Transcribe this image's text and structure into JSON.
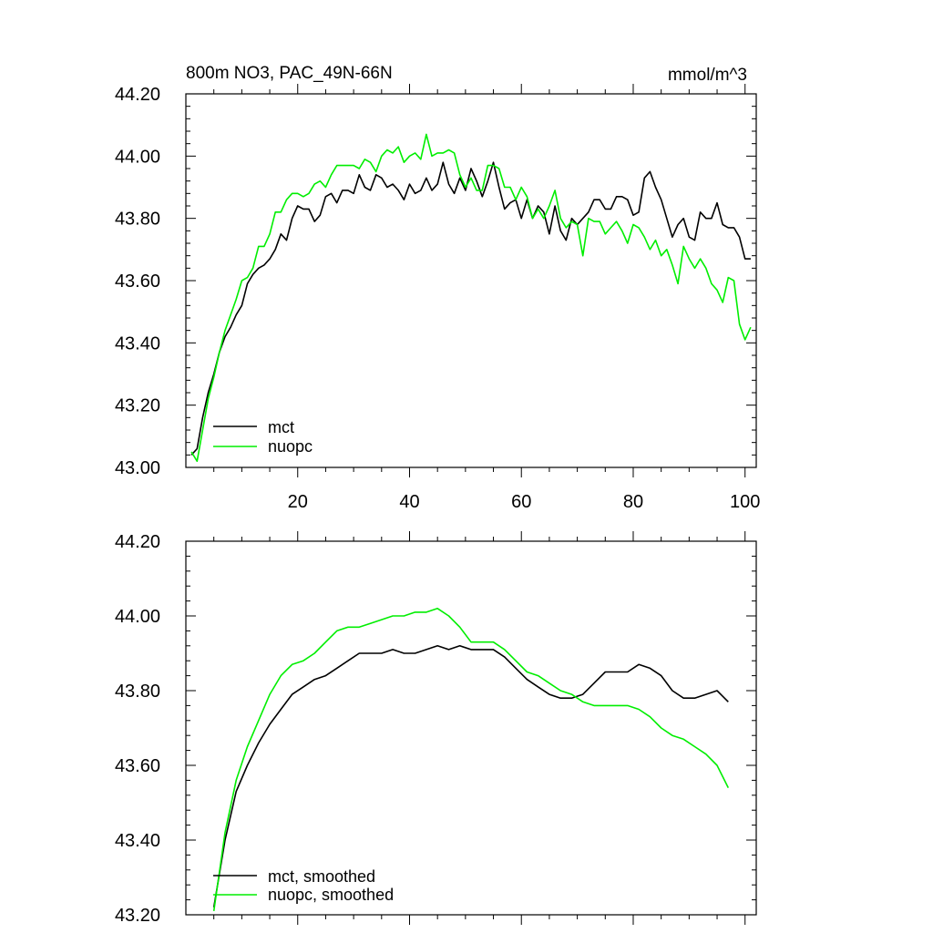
{
  "colors": {
    "mct": "#000000",
    "nuopc": "#00ee00",
    "axis": "#000000"
  },
  "chart_data": [
    {
      "type": "line",
      "title": "800m NO3, PAC_49N-66N",
      "units_label": "mmol/m^3",
      "xlim": [
        0,
        102
      ],
      "ylim": [
        43.0,
        44.2
      ],
      "xticks": [
        20,
        40,
        60,
        80,
        100
      ],
      "xtick_labels": [
        "20",
        "40",
        "60",
        "80",
        "100"
      ],
      "yticks": [
        43.0,
        43.2,
        43.4,
        43.6,
        43.8,
        44.0,
        44.2
      ],
      "ytick_labels": [
        "43.00",
        "43.20",
        "43.40",
        "43.60",
        "43.80",
        "44.00",
        "44.20"
      ],
      "legend": {
        "position": "bottom-left",
        "entries": [
          "mct",
          "nuopc"
        ]
      },
      "series": [
        {
          "name": "mct",
          "x": [
            1,
            2,
            3,
            4,
            5,
            6,
            7,
            8,
            9,
            10,
            11,
            12,
            13,
            14,
            15,
            16,
            17,
            18,
            19,
            20,
            21,
            22,
            23,
            24,
            25,
            26,
            27,
            28,
            29,
            30,
            31,
            32,
            33,
            34,
            35,
            36,
            37,
            38,
            39,
            40,
            41,
            42,
            43,
            44,
            45,
            46,
            47,
            48,
            49,
            50,
            51,
            52,
            53,
            54,
            55,
            56,
            57,
            58,
            59,
            60,
            61,
            62,
            63,
            64,
            65,
            66,
            67,
            68,
            69,
            70,
            71,
            72,
            73,
            74,
            75,
            76,
            77,
            78,
            79,
            80,
            81,
            82,
            83,
            84,
            85,
            86,
            87,
            88,
            89,
            90,
            91,
            92,
            93,
            94,
            95,
            96,
            97,
            98,
            99,
            100,
            101
          ],
          "values": [
            43.04,
            43.06,
            43.16,
            43.24,
            43.3,
            43.37,
            43.42,
            43.45,
            43.49,
            43.52,
            43.59,
            43.62,
            43.64,
            43.65,
            43.67,
            43.7,
            43.75,
            43.73,
            43.8,
            43.84,
            43.83,
            43.83,
            43.79,
            43.81,
            43.87,
            43.88,
            43.85,
            43.89,
            43.89,
            43.88,
            43.94,
            43.9,
            43.89,
            43.94,
            43.93,
            43.9,
            43.91,
            43.89,
            43.86,
            43.91,
            43.88,
            43.89,
            43.93,
            43.89,
            43.91,
            43.98,
            43.91,
            43.88,
            43.93,
            43.89,
            43.96,
            43.92,
            43.87,
            43.92,
            43.98,
            43.9,
            43.83,
            43.85,
            43.86,
            43.8,
            43.86,
            43.8,
            43.84,
            43.82,
            43.75,
            43.84,
            43.76,
            43.73,
            43.8,
            43.78,
            43.8,
            43.82,
            43.86,
            43.86,
            43.83,
            43.83,
            43.87,
            43.87,
            43.86,
            43.81,
            43.82,
            43.93,
            43.95,
            43.9,
            43.86,
            43.8,
            43.74,
            43.78,
            43.8,
            43.74,
            43.73,
            43.82,
            43.8,
            43.8,
            43.85,
            43.78,
            43.77,
            43.77,
            43.74,
            43.67,
            43.67
          ]
        },
        {
          "name": "nuopc",
          "x": [
            1,
            2,
            3,
            4,
            5,
            6,
            7,
            8,
            9,
            10,
            11,
            12,
            13,
            14,
            15,
            16,
            17,
            18,
            19,
            20,
            21,
            22,
            23,
            24,
            25,
            26,
            27,
            28,
            29,
            30,
            31,
            32,
            33,
            34,
            35,
            36,
            37,
            38,
            39,
            40,
            41,
            42,
            43,
            44,
            45,
            46,
            47,
            48,
            49,
            50,
            51,
            52,
            53,
            54,
            55,
            56,
            57,
            58,
            59,
            60,
            61,
            62,
            63,
            64,
            65,
            66,
            67,
            68,
            69,
            70,
            71,
            72,
            73,
            74,
            75,
            76,
            77,
            78,
            79,
            80,
            81,
            82,
            83,
            84,
            85,
            86,
            87,
            88,
            89,
            90,
            91,
            92,
            93,
            94,
            95,
            96,
            97,
            98,
            99,
            100,
            101
          ],
          "values": [
            43.05,
            43.02,
            43.12,
            43.22,
            43.29,
            43.37,
            43.44,
            43.49,
            43.54,
            43.6,
            43.61,
            43.64,
            43.71,
            43.71,
            43.75,
            43.82,
            43.82,
            43.86,
            43.88,
            43.88,
            43.87,
            43.88,
            43.91,
            43.92,
            43.9,
            43.94,
            43.97,
            43.97,
            43.97,
            43.97,
            43.96,
            43.99,
            43.98,
            43.95,
            44.0,
            44.02,
            44.01,
            44.03,
            43.98,
            44.0,
            44.01,
            43.99,
            44.07,
            44.0,
            44.01,
            44.01,
            44.02,
            44.01,
            43.94,
            43.9,
            43.93,
            43.89,
            43.89,
            43.97,
            43.97,
            43.96,
            43.9,
            43.9,
            43.86,
            43.9,
            43.87,
            43.8,
            43.83,
            43.8,
            43.84,
            43.89,
            43.8,
            43.77,
            43.79,
            43.78,
            43.68,
            43.8,
            43.79,
            43.79,
            43.75,
            43.77,
            43.79,
            43.76,
            43.72,
            43.78,
            43.77,
            43.74,
            43.7,
            43.73,
            43.68,
            43.7,
            43.65,
            43.59,
            43.71,
            43.67,
            43.64,
            43.67,
            43.64,
            43.59,
            43.57,
            43.53,
            43.61,
            43.6,
            43.46,
            43.41,
            43.45
          ]
        }
      ]
    },
    {
      "type": "line",
      "title": "",
      "xlim": [
        0,
        102
      ],
      "ylim": [
        43.2,
        44.2
      ],
      "xticks": [
        20,
        40,
        60,
        80,
        100
      ],
      "yticks": [
        43.2,
        43.4,
        43.6,
        43.8,
        44.0,
        44.2
      ],
      "ytick_labels": [
        "43.20",
        "43.40",
        "43.60",
        "43.80",
        "44.00",
        "44.20"
      ],
      "legend": {
        "position": "bottom-left",
        "entries": [
          "mct, smoothed",
          "nuopc, smoothed"
        ]
      },
      "series": [
        {
          "name": "mct, smoothed",
          "x": [
            5,
            7,
            9,
            11,
            13,
            15,
            17,
            19,
            21,
            23,
            25,
            27,
            29,
            31,
            33,
            35,
            37,
            39,
            41,
            43,
            45,
            47,
            49,
            51,
            53,
            55,
            57,
            59,
            61,
            63,
            65,
            67,
            69,
            71,
            73,
            75,
            77,
            79,
            81,
            83,
            85,
            87,
            89,
            91,
            93,
            95,
            97
          ],
          "values": [
            43.22,
            43.4,
            43.53,
            43.6,
            43.66,
            43.71,
            43.75,
            43.79,
            43.81,
            43.83,
            43.84,
            43.86,
            43.88,
            43.9,
            43.9,
            43.9,
            43.91,
            43.9,
            43.9,
            43.91,
            43.92,
            43.91,
            43.92,
            43.91,
            43.91,
            43.91,
            43.89,
            43.86,
            43.83,
            43.81,
            43.79,
            43.78,
            43.78,
            43.79,
            43.82,
            43.85,
            43.85,
            43.85,
            43.87,
            43.86,
            43.84,
            43.8,
            43.78,
            43.78,
            43.79,
            43.8,
            43.77
          ]
        },
        {
          "name": "nuopc, smoothed",
          "x": [
            5,
            7,
            9,
            11,
            13,
            15,
            17,
            19,
            21,
            23,
            25,
            27,
            29,
            31,
            33,
            35,
            37,
            39,
            41,
            43,
            45,
            47,
            49,
            51,
            53,
            55,
            57,
            59,
            61,
            63,
            65,
            67,
            69,
            71,
            73,
            75,
            77,
            79,
            81,
            83,
            85,
            87,
            89,
            91,
            93,
            95,
            97
          ],
          "values": [
            43.21,
            43.42,
            43.56,
            43.65,
            43.72,
            43.79,
            43.84,
            43.87,
            43.88,
            43.9,
            43.93,
            43.96,
            43.97,
            43.97,
            43.98,
            43.99,
            44.0,
            44.0,
            44.01,
            44.01,
            44.02,
            44.0,
            43.97,
            43.93,
            43.93,
            43.93,
            43.91,
            43.88,
            43.85,
            43.84,
            43.82,
            43.8,
            43.79,
            43.77,
            43.76,
            43.76,
            43.76,
            43.76,
            43.75,
            43.73,
            43.7,
            43.68,
            43.67,
            43.65,
            43.63,
            43.6,
            43.54
          ]
        }
      ]
    }
  ]
}
